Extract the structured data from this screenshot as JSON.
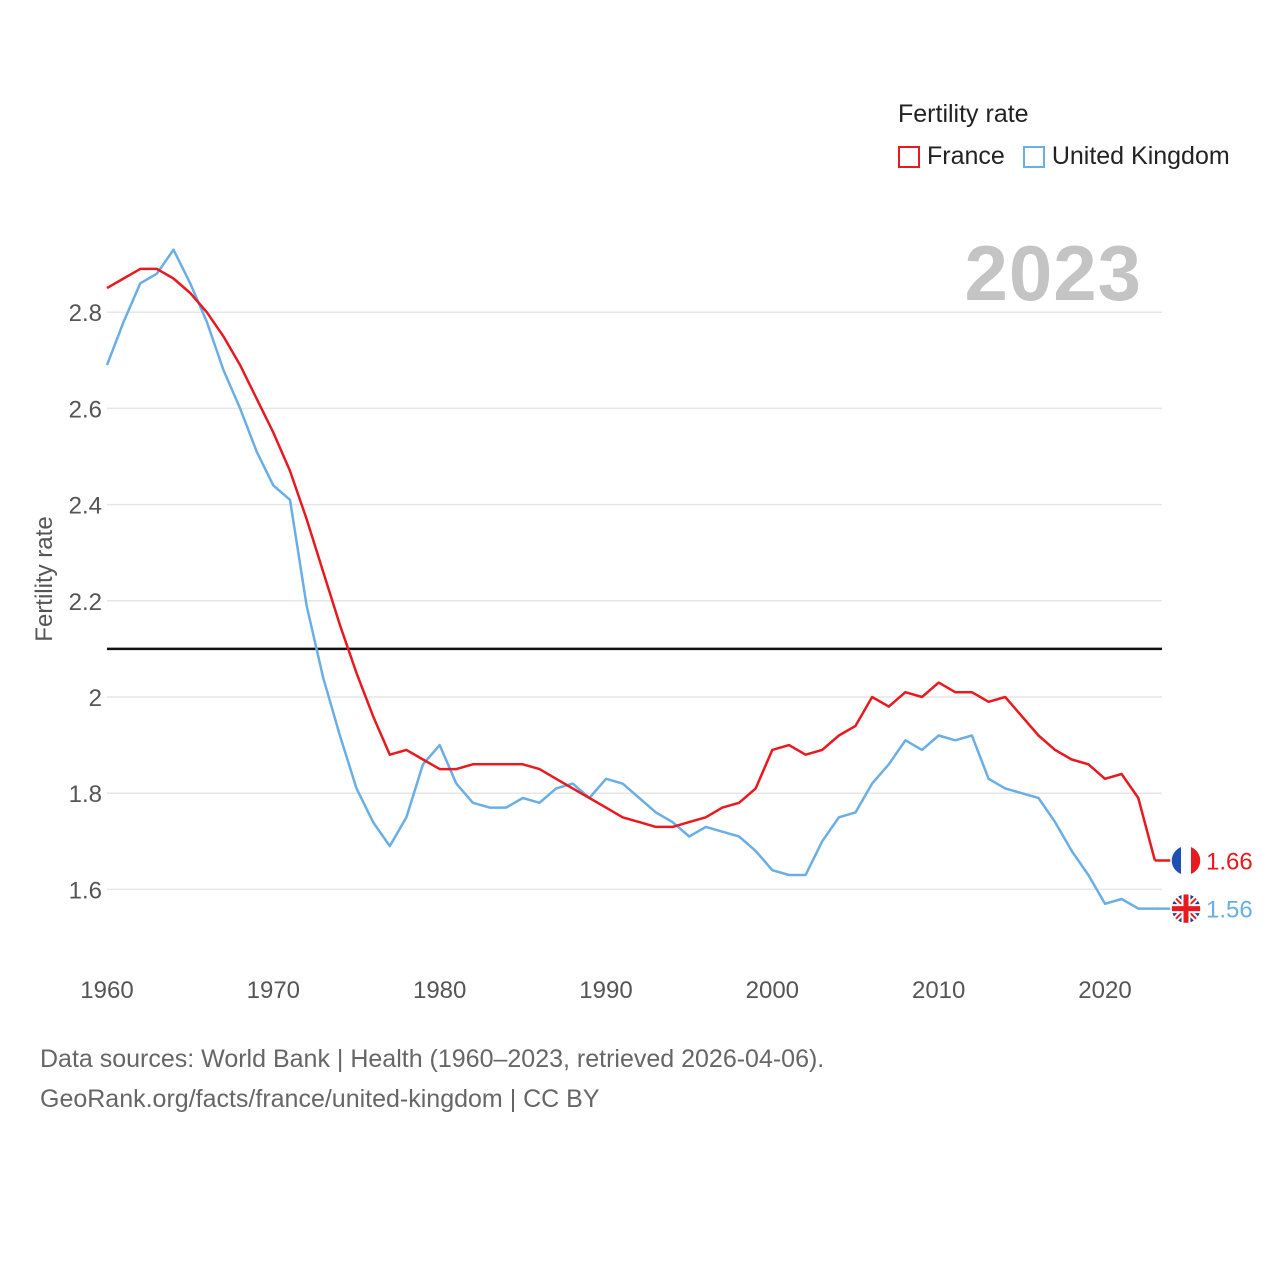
{
  "legend": {
    "title": "Fertility rate",
    "items": [
      {
        "label": "France",
        "color": "#e8191f"
      },
      {
        "label": "United Kingdom",
        "color": "#6aaee6"
      }
    ]
  },
  "current_year": "2023",
  "chart_data": {
    "type": "line",
    "title": "Fertility rate",
    "xlabel": "",
    "ylabel": "Fertility rate",
    "xlim": [
      1960,
      2023
    ],
    "ylim": [
      1.45,
      3.0
    ],
    "yticks": [
      1.6,
      1.8,
      2,
      2.2,
      2.4,
      2.6,
      2.8
    ],
    "ytick_labels": [
      "1.6",
      "1.8",
      "2",
      "2.2",
      "2.4",
      "2.6",
      "2.8"
    ],
    "xticks": [
      1960,
      1970,
      1980,
      1990,
      2000,
      2010,
      2020
    ],
    "xtick_labels": [
      "1960",
      "1970",
      "1980",
      "1990",
      "2000",
      "2010",
      "2020"
    ],
    "reference_line": 2.1,
    "x": [
      1960,
      1961,
      1962,
      1963,
      1964,
      1965,
      1966,
      1967,
      1968,
      1969,
      1970,
      1971,
      1972,
      1973,
      1974,
      1975,
      1976,
      1977,
      1978,
      1979,
      1980,
      1981,
      1982,
      1983,
      1984,
      1985,
      1986,
      1987,
      1988,
      1989,
      1990,
      1991,
      1992,
      1993,
      1994,
      1995,
      1996,
      1997,
      1998,
      1999,
      2000,
      2001,
      2002,
      2003,
      2004,
      2005,
      2006,
      2007,
      2008,
      2009,
      2010,
      2011,
      2012,
      2013,
      2014,
      2015,
      2016,
      2017,
      2018,
      2019,
      2020,
      2021,
      2022,
      2023
    ],
    "series": [
      {
        "name": "France",
        "color": "#e8191f",
        "end_label": "1.66",
        "values": [
          2.85,
          2.87,
          2.89,
          2.89,
          2.87,
          2.84,
          2.8,
          2.75,
          2.69,
          2.62,
          2.55,
          2.47,
          2.37,
          2.26,
          2.15,
          2.05,
          1.96,
          1.88,
          1.89,
          1.87,
          1.85,
          1.85,
          1.86,
          1.86,
          1.86,
          1.86,
          1.85,
          1.83,
          1.81,
          1.79,
          1.77,
          1.75,
          1.74,
          1.73,
          1.73,
          1.74,
          1.75,
          1.77,
          1.78,
          1.81,
          1.89,
          1.9,
          1.88,
          1.89,
          1.92,
          1.94,
          2.0,
          1.98,
          2.01,
          2.0,
          2.03,
          2.01,
          2.01,
          1.99,
          2.0,
          1.96,
          1.92,
          1.89,
          1.87,
          1.86,
          1.83,
          1.84,
          1.79,
          1.66
        ]
      },
      {
        "name": "United Kingdom",
        "color": "#6aaee6",
        "end_label": "1.56",
        "values": [
          2.69,
          2.78,
          2.86,
          2.88,
          2.93,
          2.86,
          2.78,
          2.68,
          2.6,
          2.51,
          2.44,
          2.41,
          2.19,
          2.04,
          1.92,
          1.81,
          1.74,
          1.69,
          1.75,
          1.86,
          1.9,
          1.82,
          1.78,
          1.77,
          1.77,
          1.79,
          1.78,
          1.81,
          1.82,
          1.79,
          1.83,
          1.82,
          1.79,
          1.76,
          1.74,
          1.71,
          1.73,
          1.72,
          1.71,
          1.68,
          1.64,
          1.63,
          1.63,
          1.7,
          1.75,
          1.76,
          1.82,
          1.86,
          1.91,
          1.89,
          1.92,
          1.91,
          1.92,
          1.83,
          1.81,
          1.8,
          1.79,
          1.74,
          1.68,
          1.63,
          1.57,
          1.58,
          1.56,
          1.56
        ]
      }
    ]
  },
  "footer": {
    "source_line": "Data sources: World Bank | Health (1960–2023, retrieved 2026-04-06).",
    "credit_line": "GeoRank.org/facts/france/united-kingdom | CC BY"
  }
}
